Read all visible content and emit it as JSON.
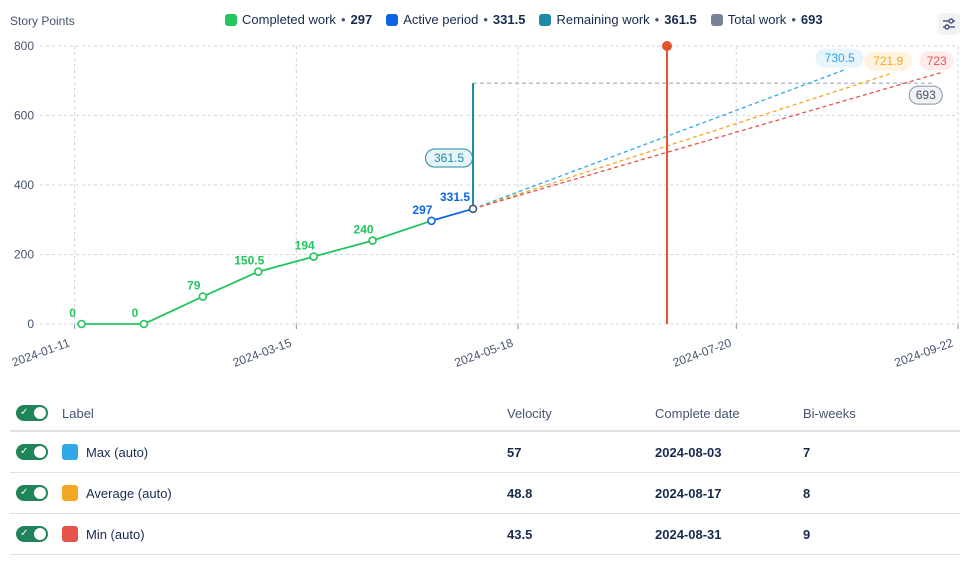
{
  "header": {
    "y_axis_title": "Story Points"
  },
  "legend": [
    {
      "label": "Completed work",
      "value": "297",
      "color": "#22c55e"
    },
    {
      "label": "Active period",
      "value": "331.5",
      "color": "#0c66e4"
    },
    {
      "label": "Remaining work",
      "value": "361.5",
      "color": "#1d8aa6"
    },
    {
      "label": "Total work",
      "value": "693",
      "color": "#758195"
    }
  ],
  "chart_data": {
    "type": "line",
    "x_axis": {
      "type": "date",
      "range": [
        "2024-01-01",
        "2024-09-22"
      ],
      "ticks": [
        "2024-01-11",
        "2024-03-15",
        "2024-05-18",
        "2024-07-20",
        "2024-09-22"
      ]
    },
    "y_axis": {
      "range": [
        0,
        800
      ],
      "ticks": [
        0,
        200,
        400,
        600,
        800
      ]
    },
    "grid": true,
    "legend_position": "top",
    "completed_series": {
      "name": "Completed work",
      "color": "#22c55e",
      "points": [
        {
          "x": "2024-01-13",
          "y": 0,
          "label": "0"
        },
        {
          "x": "2024-01-31",
          "y": 0,
          "label": "0"
        },
        {
          "x": "2024-02-17",
          "y": 79,
          "label": "79"
        },
        {
          "x": "2024-03-04",
          "y": 150.5,
          "label": "150.5"
        },
        {
          "x": "2024-03-20",
          "y": 194,
          "label": "194"
        },
        {
          "x": "2024-04-06",
          "y": 240,
          "label": "240"
        },
        {
          "x": "2024-04-23",
          "y": 297,
          "label": "297"
        }
      ]
    },
    "active_series": {
      "name": "Active period",
      "color": "#0c66e4",
      "points": [
        {
          "x": "2024-04-23",
          "y": 297
        },
        {
          "x": "2024-05-05",
          "y": 331.5,
          "label": "331.5"
        }
      ]
    },
    "remaining_marker": {
      "x": "2024-05-05",
      "y_from": 331.5,
      "y_to": 693,
      "label": "361.5",
      "color": "#1d8aa6"
    },
    "total_line": {
      "y": 693,
      "x_from": "2024-05-05",
      "x_to": "2024-09-15",
      "label": "693",
      "color": "#a5adba"
    },
    "forecasts": [
      {
        "name": "Max (auto)",
        "color": "#2ea8e6",
        "from": {
          "x": "2024-05-05",
          "y": 331.5
        },
        "to": {
          "x": "2024-08-20",
          "y": 730.5
        },
        "label": "730.5"
      },
      {
        "name": "Average (auto)",
        "color": "#f5a623",
        "from": {
          "x": "2024-05-05",
          "y": 331.5
        },
        "to": {
          "x": "2024-09-03",
          "y": 721.9
        },
        "label": "721.9"
      },
      {
        "name": "Min (auto)",
        "color": "#e5534b",
        "from": {
          "x": "2024-05-05",
          "y": 331.5
        },
        "to": {
          "x": "2024-09-17",
          "y": 723
        },
        "label": "723"
      }
    ],
    "today_marker": {
      "x": "2024-06-30",
      "color": "#e5532e"
    }
  },
  "table": {
    "headers": {
      "label": "Label",
      "velocity": "Velocity",
      "complete_date": "Complete date",
      "bi_weeks": "Bi-weeks"
    },
    "rows": [
      {
        "label": "Max (auto)",
        "color": "#2ea8e6",
        "velocity": "57",
        "complete_date": "2024-08-03",
        "bi_weeks": "7"
      },
      {
        "label": "Average (auto)",
        "color": "#f5a623",
        "velocity": "48.8",
        "complete_date": "2024-08-17",
        "bi_weeks": "8"
      },
      {
        "label": "Min (auto)",
        "color": "#e5534b",
        "velocity": "43.5",
        "complete_date": "2024-08-31",
        "bi_weeks": "9"
      }
    ]
  }
}
